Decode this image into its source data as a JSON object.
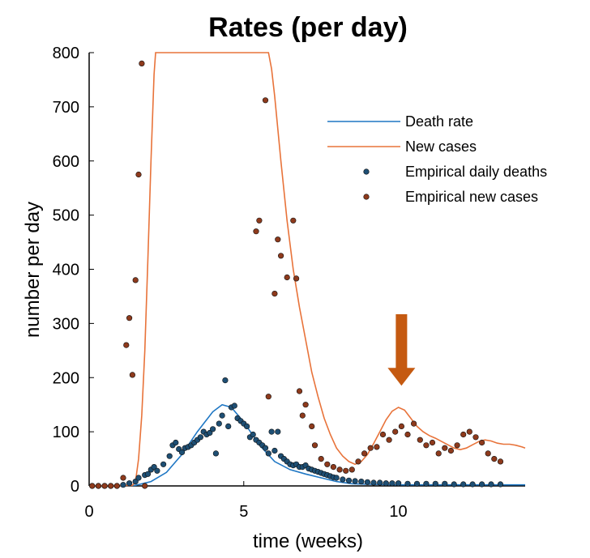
{
  "chart_data": {
    "type": "line",
    "title": "Rates (per day)",
    "xlabel": "time (weeks)",
    "ylabel": "number per day",
    "xlim": [
      0,
      14.1
    ],
    "ylim": [
      0,
      800
    ],
    "xticks": [
      0,
      5,
      10
    ],
    "yticks": [
      0,
      100,
      200,
      300,
      400,
      500,
      600,
      700,
      800
    ],
    "grid": false,
    "legend_position": "top-right",
    "colors": {
      "death_rate": "#1f77c4",
      "new_cases": "#e8733a",
      "emp_deaths": "#1e4f74",
      "emp_cases": "#8e3a1c",
      "arrow": "#c55a11"
    },
    "annotation": {
      "type": "arrow-down",
      "x": 10.1,
      "y_top": 317,
      "y_tip": 185
    },
    "series": [
      {
        "name": "Death rate",
        "kind": "line",
        "x": [
          0,
          1.5,
          2.0,
          2.5,
          3.0,
          3.5,
          4.0,
          4.3,
          4.6,
          5.0,
          5.5,
          6.0,
          6.5,
          7.0,
          7.5,
          8.0,
          8.5,
          9.0,
          10.0,
          11.0,
          12.0,
          13.0,
          14.1
        ],
        "y": [
          0,
          1,
          8,
          25,
          58,
          100,
          137,
          150,
          145,
          118,
          76,
          45,
          30,
          22,
          15,
          8,
          4,
          3,
          2,
          2,
          2,
          2,
          2
        ]
      },
      {
        "name": "New cases",
        "kind": "line",
        "x": [
          0,
          1.4,
          1.5,
          1.6,
          1.7,
          1.8,
          1.9,
          2.0,
          2.1,
          2.15,
          5.8,
          5.9,
          6.0,
          6.2,
          6.4,
          6.6,
          6.8,
          7.0,
          7.2,
          7.4,
          7.6,
          7.8,
          8.0,
          8.2,
          8.4,
          8.6,
          8.8,
          9.0,
          9.2,
          9.4,
          9.6,
          9.8,
          10.0,
          10.2,
          10.4,
          10.6,
          10.8,
          11.0,
          11.2,
          11.4,
          11.6,
          11.8,
          12.0,
          12.2,
          12.4,
          12.6,
          12.8,
          13.0,
          13.2,
          13.4,
          13.6,
          13.8,
          14.0,
          14.1
        ],
        "y": [
          0,
          1,
          8,
          50,
          130,
          250,
          420,
          600,
          760,
          800,
          800,
          770,
          720,
          600,
          490,
          400,
          330,
          270,
          210,
          165,
          125,
          95,
          70,
          55,
          45,
          40,
          45,
          58,
          78,
          100,
          122,
          138,
          145,
          140,
          125,
          110,
          100,
          93,
          88,
          82,
          76,
          70,
          67,
          70,
          76,
          82,
          85,
          83,
          79,
          77,
          77,
          75,
          72,
          70
        ]
      },
      {
        "name": "Empirical daily deaths",
        "kind": "scatter",
        "x": [
          0.1,
          0.3,
          0.5,
          0.7,
          0.9,
          1.1,
          1.3,
          1.5,
          1.6,
          1.8,
          1.9,
          2.0,
          2.1,
          2.2,
          2.4,
          2.6,
          2.7,
          2.8,
          2.9,
          3.0,
          3.1,
          3.2,
          3.3,
          3.4,
          3.5,
          3.6,
          3.7,
          3.8,
          3.9,
          4.0,
          4.1,
          4.2,
          4.3,
          4.4,
          4.5,
          4.6,
          4.7,
          4.8,
          4.9,
          5.0,
          5.1,
          5.2,
          5.3,
          5.4,
          5.5,
          5.6,
          5.7,
          5.8,
          5.9,
          6.0,
          6.1,
          6.2,
          6.3,
          6.4,
          6.5,
          6.6,
          6.7,
          6.8,
          6.9,
          7.0,
          7.1,
          7.2,
          7.3,
          7.4,
          7.5,
          7.6,
          7.7,
          7.8,
          7.9,
          8.0,
          8.2,
          8.4,
          8.6,
          8.8,
          9.0,
          9.2,
          9.4,
          9.6,
          9.8,
          10.0,
          10.3,
          10.6,
          10.9,
          11.2,
          11.5,
          11.8,
          12.1,
          12.4,
          12.7,
          13.0,
          13.3
        ],
        "y": [
          0,
          0,
          0,
          0,
          0,
          2,
          5,
          8,
          15,
          20,
          22,
          30,
          35,
          28,
          40,
          55,
          75,
          80,
          68,
          62,
          70,
          72,
          75,
          80,
          85,
          90,
          100,
          95,
          98,
          105,
          60,
          115,
          130,
          195,
          110,
          145,
          148,
          125,
          120,
          115,
          110,
          90,
          95,
          85,
          80,
          75,
          70,
          60,
          100,
          65,
          100,
          55,
          50,
          45,
          40,
          38,
          40,
          35,
          35,
          38,
          32,
          30,
          28,
          26,
          24,
          22,
          20,
          18,
          16,
          15,
          12,
          10,
          9,
          8,
          7,
          6,
          6,
          5,
          5,
          5,
          4,
          4,
          4,
          4,
          4,
          3,
          3,
          3,
          3,
          3,
          3
        ]
      },
      {
        "name": "Empirical new cases",
        "kind": "scatter",
        "x": [
          0.1,
          0.3,
          0.5,
          0.7,
          0.9,
          1.1,
          1.2,
          1.3,
          1.4,
          1.5,
          1.6,
          1.7,
          1.8,
          5.4,
          5.5,
          5.7,
          5.8,
          6.0,
          6.1,
          6.2,
          6.4,
          6.6,
          6.7,
          6.8,
          6.9,
          7.0,
          7.2,
          7.3,
          7.5,
          7.7,
          7.9,
          8.1,
          8.3,
          8.5,
          8.7,
          8.9,
          9.1,
          9.3,
          9.5,
          9.7,
          9.9,
          10.1,
          10.3,
          10.5,
          10.7,
          10.9,
          11.1,
          11.3,
          11.5,
          11.7,
          11.9,
          12.1,
          12.3,
          12.5,
          12.7,
          12.9,
          13.1,
          13.3
        ],
        "y": [
          0,
          0,
          0,
          0,
          0,
          15,
          260,
          310,
          205,
          380,
          575,
          780,
          0,
          470,
          490,
          712,
          165,
          355,
          455,
          425,
          385,
          490,
          383,
          175,
          130,
          150,
          110,
          75,
          50,
          40,
          35,
          30,
          28,
          30,
          45,
          60,
          70,
          72,
          95,
          85,
          100,
          110,
          95,
          115,
          85,
          75,
          80,
          60,
          70,
          65,
          75,
          95,
          100,
          90,
          80,
          60,
          50,
          45
        ]
      }
    ]
  }
}
